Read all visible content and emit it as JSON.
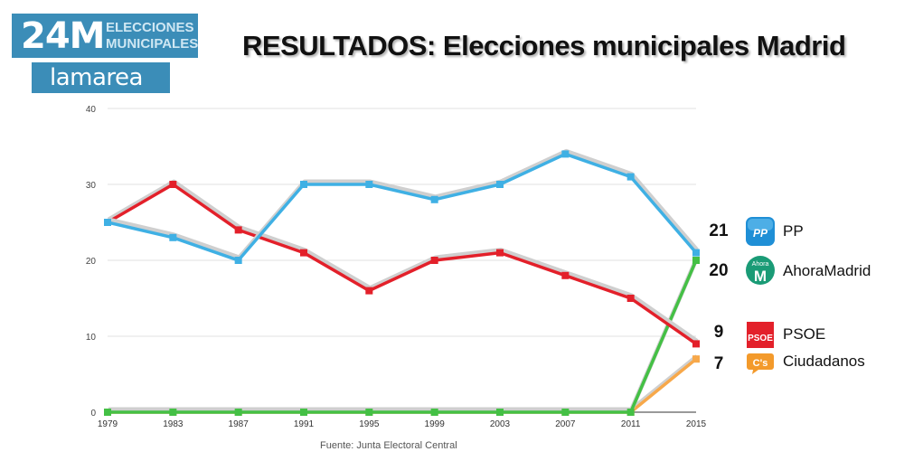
{
  "header": {
    "badge_number": "24M",
    "badge_line1": "ELECCIONES",
    "badge_line2": "MUNICIPALES",
    "brand": "lamarea",
    "title": "RESULTADOS: Elecciones municipales Madrid"
  },
  "source": "Fuente: Junta Electoral Central",
  "colors": {
    "brand": "#3b8db8",
    "PP": "#3fb0e4",
    "PSOE": "#e3202a",
    "AhoraMadrid": "#44c045",
    "Ciudadanos": "#f7a84a"
  },
  "legend": [
    {
      "value": "21",
      "name": "PP",
      "icon": "pp-logo-icon",
      "icon_text": "PP"
    },
    {
      "value": "20",
      "name": "AhoraMadrid",
      "icon": "ahoramadrid-logo-icon",
      "icon_text": "Ahora",
      "icon_letter": "M"
    },
    {
      "value": "9",
      "name": "PSOE",
      "icon": "psoe-logo-icon",
      "icon_text": "PSOE"
    },
    {
      "value": "7",
      "name": "Ciudadanos",
      "icon": "ciudadanos-logo-icon",
      "icon_text": "C's"
    }
  ],
  "chart_data": {
    "type": "line",
    "title": "RESULTADOS: Elecciones municipales Madrid",
    "xlabel": "",
    "ylabel": "",
    "x": [
      "1979",
      "1983",
      "1987",
      "1991",
      "1995",
      "1999",
      "2003",
      "2007",
      "2011",
      "2015"
    ],
    "ylim": [
      0,
      40
    ],
    "yticks": [
      "0",
      "10",
      "20",
      "30",
      "40"
    ],
    "grid": true,
    "series": [
      {
        "name": "PP",
        "color": "#3fb0e4",
        "values": [
          25,
          23,
          20,
          30,
          30,
          28,
          30,
          34,
          31,
          21
        ]
      },
      {
        "name": "PSOE",
        "color": "#e3202a",
        "values": [
          25,
          30,
          24,
          21,
          16,
          20,
          21,
          18,
          15,
          9
        ]
      },
      {
        "name": "AhoraMadrid",
        "color": "#44c045",
        "values": [
          0,
          0,
          0,
          0,
          0,
          0,
          0,
          0,
          0,
          20
        ]
      },
      {
        "name": "Ciudadanos",
        "color": "#f7a84a",
        "values": [
          0,
          0,
          0,
          0,
          0,
          0,
          0,
          0,
          0,
          7
        ]
      }
    ]
  }
}
